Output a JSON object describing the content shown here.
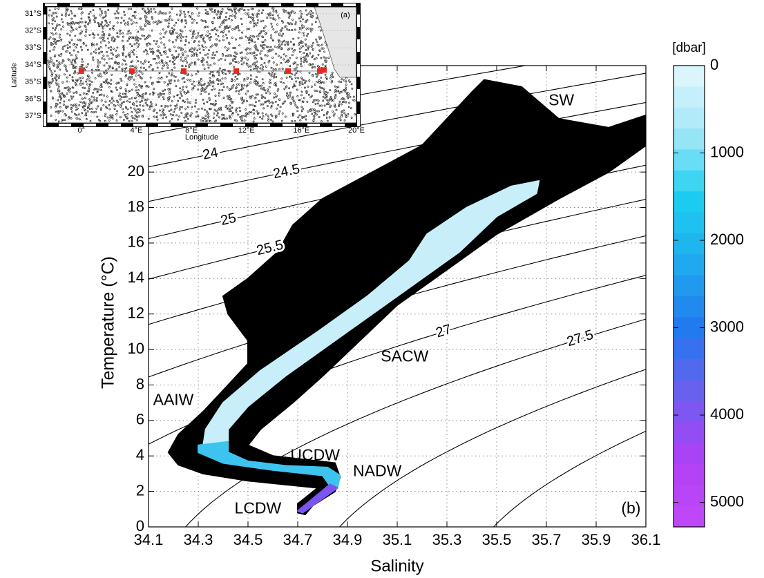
{
  "chart_data": [
    {
      "type": "map",
      "title": "(a)",
      "xlabel": "Longitude",
      "ylabel": "Latitude",
      "xlim": [
        -2.5,
        20
      ],
      "ylim": [
        -37.4,
        -30.6
      ],
      "xticks": [
        {
          "value": 0,
          "label": "0°"
        },
        {
          "value": 4,
          "label": "4°E"
        },
        {
          "value": 8,
          "label": "8°E"
        },
        {
          "value": 12,
          "label": "12°E"
        },
        {
          "value": 16,
          "label": "16°E"
        },
        {
          "value": 20,
          "label": "20°E"
        }
      ],
      "yticks": [
        {
          "value": -31,
          "label": "31°S"
        },
        {
          "value": -32,
          "label": "32°S"
        },
        {
          "value": -33,
          "label": "33°S"
        },
        {
          "value": -34,
          "label": "34°S"
        },
        {
          "value": -35,
          "label": "35°S"
        },
        {
          "value": -36,
          "label": "36°S"
        },
        {
          "value": -37,
          "label": "37°S"
        }
      ],
      "grid": true,
      "series": [
        {
          "color": "#e8281e",
          "x": [
            0,
            3.67,
            7.44,
            11.26,
            15.03,
            17.34,
            17.64
          ],
          "values": [
            -34.36,
            -34.36,
            -34.36,
            -34.36,
            -34.36,
            -34.36,
            -34.3
          ]
        }
      ]
    },
    {
      "type": "scatter",
      "xlabel": "Salinity",
      "ylabel": "Temperature (°C)",
      "xlim": [
        34.1,
        36.1
      ],
      "ylim": [
        0,
        26
      ],
      "xticks": [
        34.1,
        34.3,
        34.5,
        34.7,
        34.9,
        35.1,
        35.3,
        35.5,
        35.7,
        35.9,
        36.1
      ],
      "yticks": [
        0,
        2,
        4,
        6,
        8,
        10,
        12,
        14,
        16,
        18,
        20
      ],
      "grid": true,
      "contour_levels": [
        23,
        23.5,
        24,
        24.5,
        25,
        25.5,
        26,
        26.5,
        27,
        27.5,
        28,
        28.5
      ],
      "contour_labels": [
        24,
        24.5,
        25,
        25.5,
        27,
        27.5
      ],
      "annotations": [
        {
          "text": "SW",
          "x": 35.76,
          "y": 24.0
        },
        {
          "text": "SACW",
          "x": 35.13,
          "y": 9.55
        },
        {
          "text": "AAIW",
          "x": 34.2,
          "y": 7.1
        },
        {
          "text": "UCDW",
          "x": 34.77,
          "y": 4.0
        },
        {
          "text": "NADW",
          "x": 35.02,
          "y": 3.1
        },
        {
          "text": "LCDW",
          "x": 34.54,
          "y": 1.0
        },
        {
          "text": "(b)",
          "x": 36.04,
          "y": 1.0
        }
      ],
      "series": [
        {
          "color": "#000000",
          "x": [
            34.7,
            34.7,
            34.78,
            34.5,
            34.32,
            34.22,
            34.18,
            34.22,
            34.32,
            34.42,
            34.5,
            34.5,
            34.42,
            34.4,
            34.5,
            34.62,
            34.68,
            34.8,
            35.0,
            35.2,
            35.3,
            35.4,
            35.45,
            35.6,
            35.75,
            35.95,
            36.1,
            36.1,
            35.95,
            35.75,
            35.5,
            35.3,
            35.1,
            34.95,
            34.8,
            34.68,
            34.55,
            34.5,
            34.6,
            34.85,
            34.87,
            34.85,
            34.76,
            34.73
          ],
          "values": [
            0.8,
            1.3,
            2.2,
            2.6,
            3.0,
            3.5,
            4.2,
            5.2,
            6.5,
            8.0,
            9.2,
            10.5,
            12,
            13,
            14,
            15.5,
            17,
            18.5,
            20,
            21.5,
            23,
            24.5,
            25.2,
            24.8,
            23,
            22.5,
            23.2,
            21.5,
            20,
            18.5,
            16.5,
            14.5,
            12.5,
            10.5,
            8.5,
            7,
            5.5,
            4.6,
            4.0,
            3.6,
            2.8,
            2.0,
            1.2,
            0.7
          ]
        },
        {
          "color": "#c8eff9",
          "x": [
            35.56,
            35.67,
            35.66,
            35.5,
            35.35,
            35.1,
            34.85,
            34.65,
            34.5,
            34.42,
            34.42,
            34.32,
            34.33,
            34.4,
            34.55,
            34.78,
            34.98,
            35.15,
            35.22,
            35.38
          ],
          "values": [
            19.2,
            19.5,
            18.8,
            17.5,
            15.5,
            13,
            10.5,
            8.5,
            6.8,
            5.5,
            4.8,
            4.6,
            5.5,
            7,
            8.8,
            11,
            13,
            15,
            16.5,
            18
          ]
        },
        {
          "color": "#3cc4ef",
          "x": [
            34.3,
            34.3,
            34.4,
            34.6,
            34.8,
            34.83,
            34.86,
            34.87,
            34.82,
            34.65,
            34.5,
            34.42,
            34.42
          ],
          "values": [
            4.6,
            4.2,
            3.6,
            3.2,
            2.9,
            2.3,
            2.2,
            2.9,
            3.35,
            3.45,
            3.7,
            4.2,
            4.8
          ]
        },
        {
          "color": "#7a55f2",
          "x": [
            34.7,
            34.72,
            34.86,
            34.83
          ],
          "values": [
            0.9,
            0.8,
            2.2,
            2.4
          ]
        }
      ],
      "colorbar": {
        "label": "[dbar]",
        "lim": [
          0,
          5280
        ],
        "ticks": [
          0,
          1000,
          2000,
          3000,
          4000,
          5000
        ],
        "colormap": [
          "#e4f8fd",
          "#a4e8f8",
          "#1ccff0",
          "#20aaef",
          "#2179ee",
          "#6d5ff0",
          "#b140f7",
          "#c04af8"
        ]
      }
    }
  ]
}
